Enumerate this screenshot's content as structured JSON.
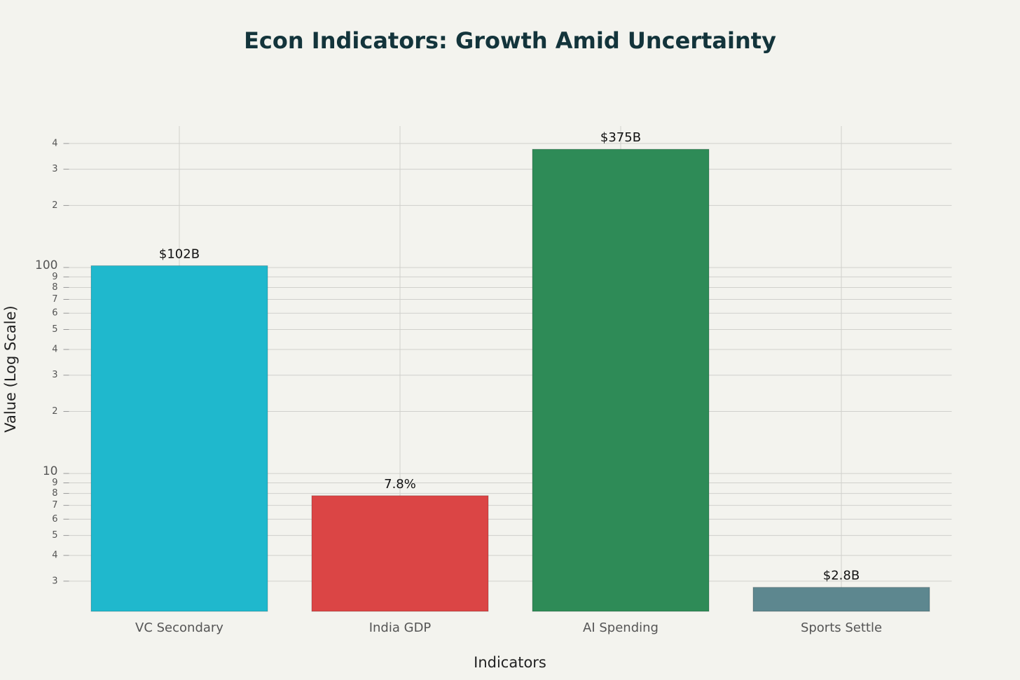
{
  "chart_data": {
    "type": "bar",
    "title": "Econ Indicators: Growth Amid Uncertainty",
    "x_label": "Indicators",
    "y_label": "Value (Log Scale)",
    "categories": [
      "VC Secondary",
      "India GDP",
      "AI Spending",
      "Sports Settle"
    ],
    "values": [
      102,
      7.8,
      375,
      2.8
    ],
    "value_labels": [
      "$102B",
      "7.8%",
      "$375B",
      "$2.8B"
    ],
    "colors": [
      "#1fb8cd",
      "#db4545",
      "#2e8b57",
      "#5d878f"
    ],
    "log_scale": true,
    "grid": true,
    "ylim": [
      2.14,
      486
    ],
    "yticks": [
      3,
      4,
      5,
      6,
      7,
      8,
      9,
      10,
      {
        "value": 20,
        "label": "2"
      },
      {
        "value": 30,
        "label": "3"
      },
      {
        "value": 40,
        "label": "4"
      },
      {
        "value": 50,
        "label": "5"
      },
      {
        "value": 60,
        "label": "6"
      },
      {
        "value": 70,
        "label": "7"
      },
      {
        "value": 80,
        "label": "8"
      },
      {
        "value": 90,
        "label": "9"
      },
      100,
      {
        "value": 200,
        "label": "2"
      },
      {
        "value": 300,
        "label": "3"
      },
      {
        "value": 400,
        "label": "4"
      }
    ]
  }
}
